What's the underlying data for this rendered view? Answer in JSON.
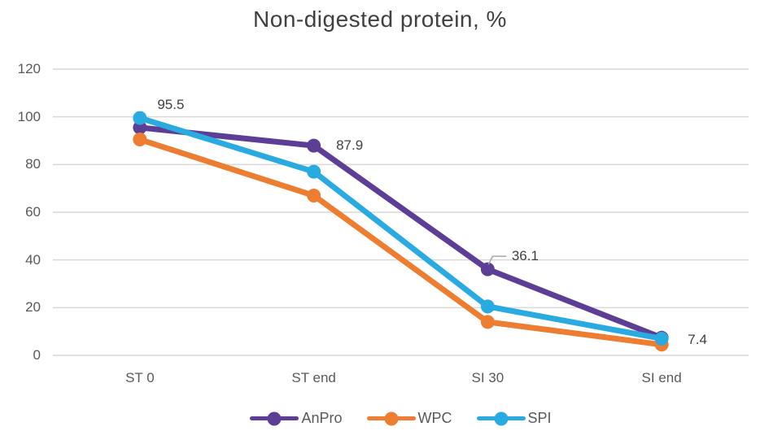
{
  "chart_data": {
    "type": "line",
    "title": "Non-digested protein, %",
    "categories": [
      "ST 0",
      "ST end",
      "SI 30",
      "SI end"
    ],
    "series": [
      {
        "name": "AnPro",
        "color": "#5D3E96",
        "values": [
          95.5,
          87.9,
          36.1,
          7.4
        ],
        "data_labels": [
          "95.5",
          "87.9",
          "36.1",
          "7.4"
        ]
      },
      {
        "name": "WPC",
        "color": "#ED7D31",
        "values": [
          90.5,
          67,
          14,
          4.5
        ]
      },
      {
        "name": "SPI",
        "color": "#29ABE2",
        "values": [
          99.5,
          77,
          20.5,
          7
        ]
      }
    ],
    "y_axis": {
      "min": 0,
      "max": 120,
      "step": 20,
      "tick_labels": [
        "0",
        "20",
        "40",
        "60",
        "80",
        "100",
        "120"
      ]
    },
    "grid": true,
    "legend_position": "bottom",
    "marker": "circle",
    "colors": {
      "grid": "#D9D9D9",
      "axis_text": "#595959",
      "title_text": "#404040",
      "data_label_text": "#404040",
      "leader_line": "#A6A6A6",
      "background": "#FFFFFF"
    }
  }
}
